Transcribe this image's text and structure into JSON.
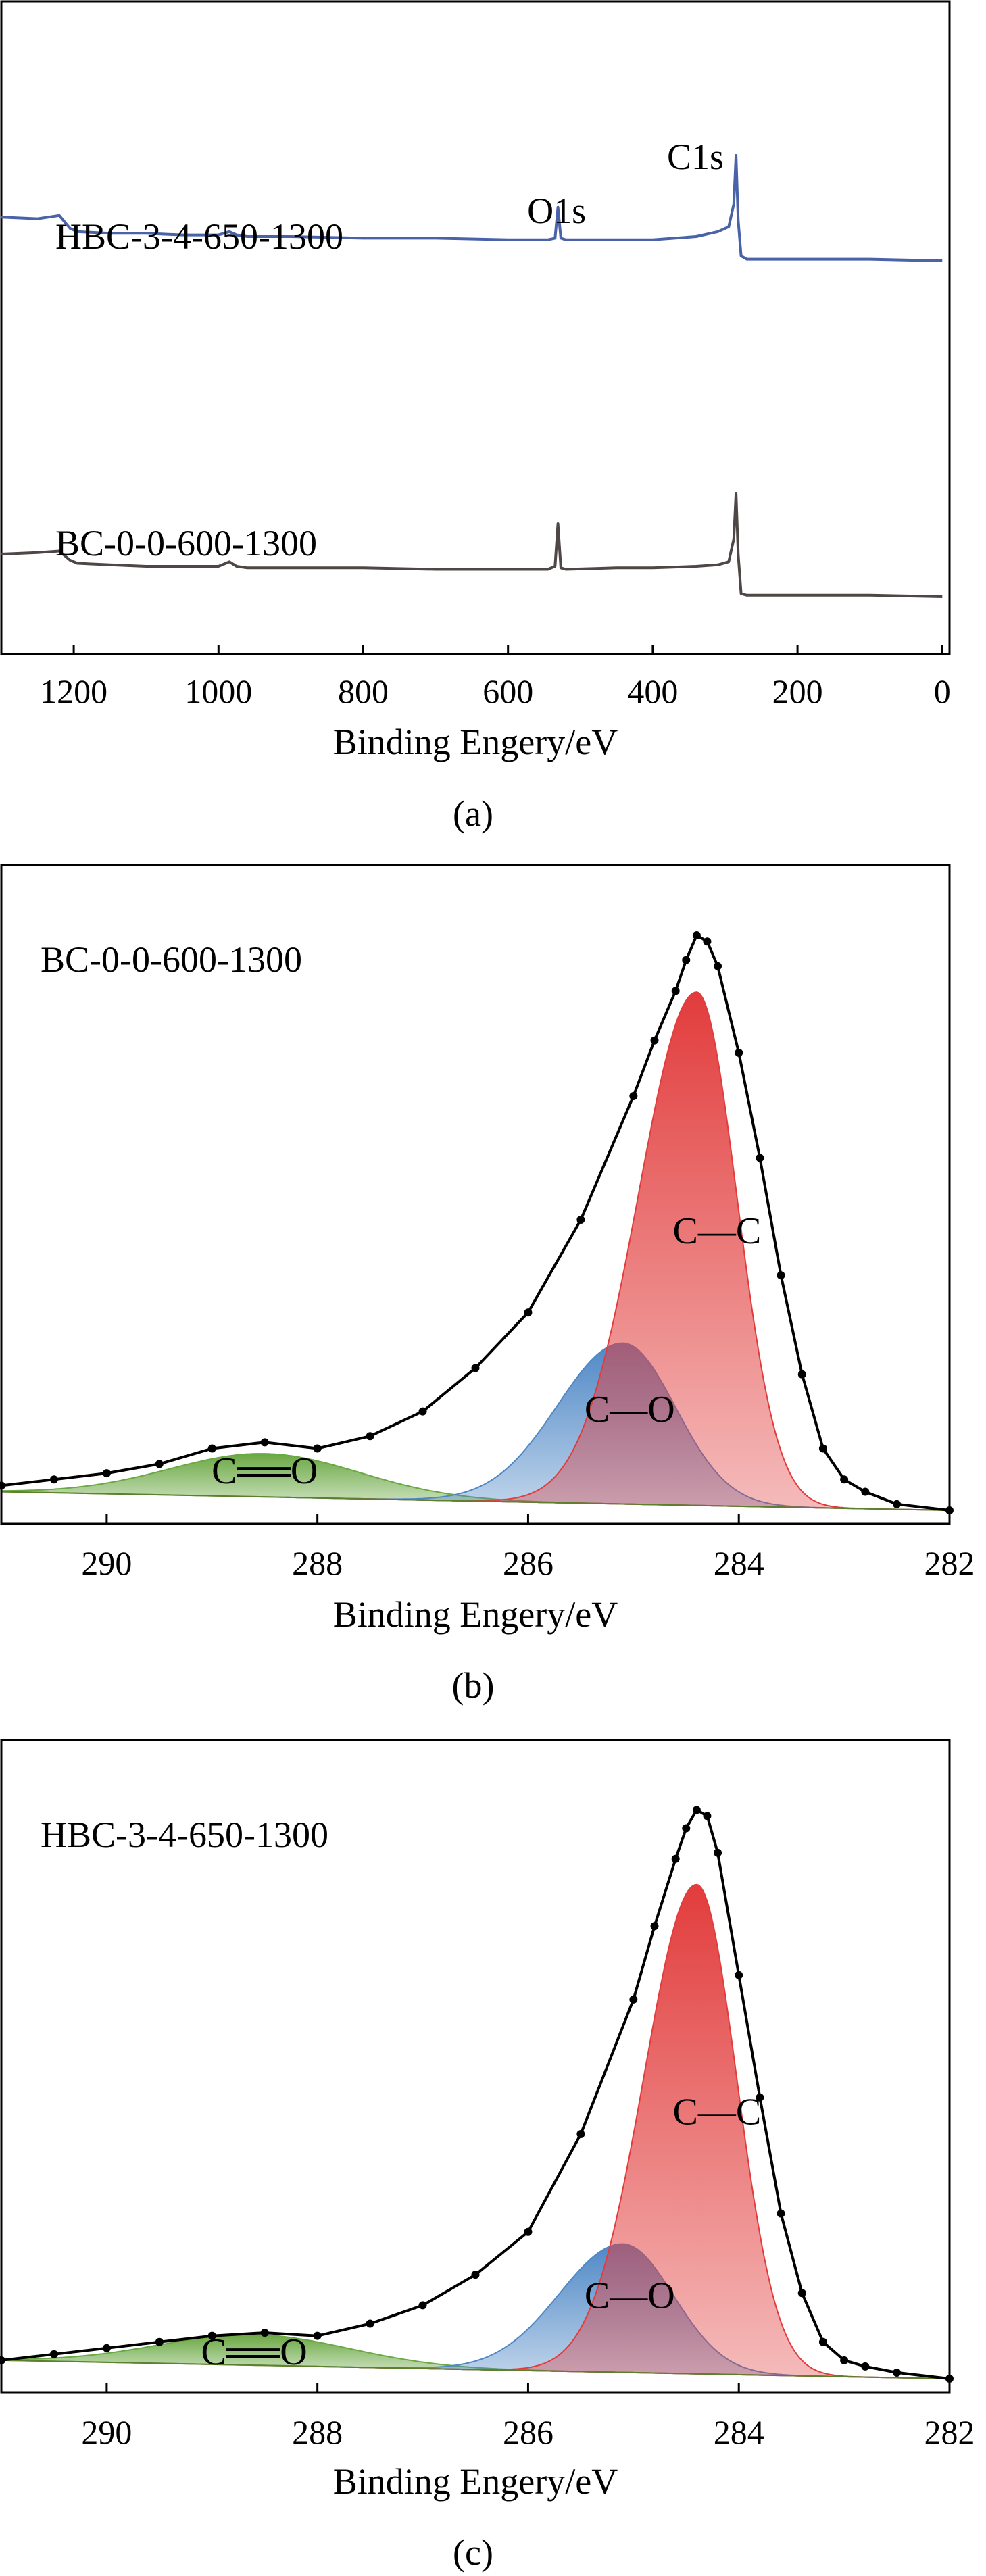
{
  "chart_data": [
    {
      "type": "line",
      "caption": "(a)",
      "xlabel": "Binding Engery/eV",
      "xlim": [
        1300,
        -10
      ],
      "x_reversed": true,
      "x_ticks": [
        1200,
        1000,
        800,
        600,
        400,
        200,
        0
      ],
      "y_ticks_shown": false,
      "grid": false,
      "peak_labels": [
        {
          "text": "O1s",
          "x": 531
        },
        {
          "text": "C1s",
          "x": 285
        }
      ],
      "series": [
        {
          "name": "HBC-3-4-650-1300",
          "color": "#4a63a8",
          "x": [
            1300,
            1250,
            1220,
            1205,
            1195,
            1150,
            1100,
            1050,
            1000,
            985,
            975,
            960,
            900,
            800,
            700,
            600,
            545,
            535,
            531,
            527,
            520,
            450,
            400,
            340,
            310,
            295,
            288,
            285,
            282,
            278,
            270,
            200,
            100,
            0
          ],
          "y": [
            0.62,
            0.61,
            0.63,
            0.55,
            0.53,
            0.52,
            0.52,
            0.51,
            0.51,
            0.53,
            0.51,
            0.5,
            0.5,
            0.49,
            0.49,
            0.48,
            0.48,
            0.49,
            0.68,
            0.49,
            0.48,
            0.48,
            0.48,
            0.5,
            0.53,
            0.56,
            0.7,
            1.0,
            0.6,
            0.38,
            0.36,
            0.36,
            0.36,
            0.35
          ]
        },
        {
          "name": "BC-0-0-600-1300",
          "color": "#4f4745",
          "x": [
            1300,
            1250,
            1220,
            1205,
            1195,
            1150,
            1100,
            1050,
            1000,
            985,
            975,
            960,
            900,
            800,
            700,
            600,
            545,
            535,
            531,
            527,
            520,
            450,
            400,
            340,
            310,
            295,
            288,
            285,
            282,
            278,
            270,
            200,
            100,
            0
          ],
          "y": [
            0.6,
            0.61,
            0.62,
            0.56,
            0.54,
            0.53,
            0.52,
            0.52,
            0.52,
            0.55,
            0.52,
            0.51,
            0.51,
            0.51,
            0.5,
            0.5,
            0.5,
            0.52,
            0.8,
            0.51,
            0.5,
            0.51,
            0.51,
            0.52,
            0.53,
            0.55,
            0.7,
            1.0,
            0.6,
            0.34,
            0.33,
            0.33,
            0.33,
            0.32
          ]
        }
      ]
    },
    {
      "type": "area",
      "caption": "(b)",
      "sample_label": "BC-0-0-600-1300",
      "xlabel": "Binding Engery/eV",
      "xlim": [
        291,
        282
      ],
      "x_reversed": true,
      "ylim": [
        0,
        1.0
      ],
      "x_ticks": [
        290,
        288,
        286,
        284,
        282
      ],
      "y_ticks_shown": false,
      "grid": false,
      "peaks": [
        {
          "label": "C—C",
          "center": 284.4,
          "height": 0.83,
          "sigma_left": 0.55,
          "sigma_right": 0.38,
          "color": "#e23c3c"
        },
        {
          "label": "C—O",
          "center": 285.1,
          "height": 0.26,
          "sigma_left": 0.62,
          "sigma_right": 0.5,
          "color": "#4f88c6"
        },
        {
          "label": "C══O",
          "center": 288.5,
          "height": 0.07,
          "sigma_left": 0.9,
          "sigma_right": 0.9,
          "color": "#6aa843"
        }
      ],
      "baseline": {
        "left": 0.03,
        "right": 0.0
      },
      "envelope": {
        "x": [
          291,
          290.5,
          290,
          289.5,
          289,
          288.5,
          288,
          287.5,
          287,
          286.5,
          286,
          285.5,
          285,
          284.8,
          284.6,
          284.5,
          284.4,
          284.3,
          284.2,
          284,
          283.8,
          283.6,
          283.4,
          283.2,
          283,
          282.8,
          282.5,
          282
        ],
        "y": [
          0.04,
          0.05,
          0.06,
          0.075,
          0.1,
          0.11,
          0.1,
          0.12,
          0.16,
          0.23,
          0.32,
          0.47,
          0.67,
          0.76,
          0.84,
          0.89,
          0.93,
          0.92,
          0.88,
          0.74,
          0.57,
          0.38,
          0.22,
          0.1,
          0.05,
          0.03,
          0.01,
          0.0
        ]
      }
    },
    {
      "type": "area",
      "caption": "(c)",
      "sample_label": "HBC-3-4-650-1300",
      "xlabel": "Binding Engery/eV",
      "xlim": [
        291,
        282
      ],
      "x_reversed": true,
      "ylim": [
        0,
        1.0
      ],
      "x_ticks": [
        290,
        288,
        286,
        284,
        282
      ],
      "y_ticks_shown": false,
      "grid": false,
      "peaks": [
        {
          "label": "C—C",
          "center": 284.4,
          "height": 0.8,
          "sigma_left": 0.5,
          "sigma_right": 0.38,
          "color": "#e23c3c"
        },
        {
          "label": "C—O",
          "center": 285.1,
          "height": 0.21,
          "sigma_left": 0.6,
          "sigma_right": 0.48,
          "color": "#4f88c6"
        },
        {
          "label": "C══O",
          "center": 288.6,
          "height": 0.05,
          "sigma_left": 0.9,
          "sigma_right": 0.9,
          "color": "#6aa843"
        }
      ],
      "baseline": {
        "left": 0.03,
        "right": 0.0
      },
      "envelope": {
        "x": [
          291,
          290.5,
          290,
          289.5,
          289,
          288.5,
          288,
          287.5,
          287,
          286.5,
          286,
          285.5,
          285,
          284.8,
          284.6,
          284.5,
          284.4,
          284.3,
          284.2,
          284,
          283.8,
          283.6,
          283.4,
          283.2,
          283,
          282.8,
          282.5,
          282
        ],
        "y": [
          0.03,
          0.04,
          0.05,
          0.06,
          0.07,
          0.075,
          0.07,
          0.09,
          0.12,
          0.17,
          0.24,
          0.4,
          0.62,
          0.74,
          0.85,
          0.9,
          0.93,
          0.92,
          0.86,
          0.66,
          0.46,
          0.27,
          0.14,
          0.06,
          0.03,
          0.02,
          0.01,
          0.0
        ]
      }
    }
  ]
}
